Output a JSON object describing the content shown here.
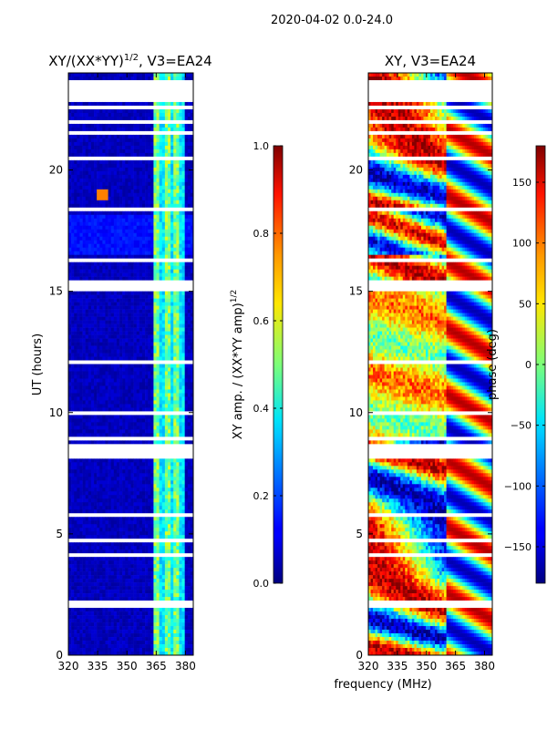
{
  "figure": {
    "suptitle": "2020-04-02 0.0-24.0",
    "xlabel": "frequency (MHz)",
    "ylabel": "UT (hours)"
  },
  "chart_data": [
    {
      "type": "heatmap",
      "title": "XY/(XX*YY)^1/2, V3=EA24",
      "title_main": "XY/(XX*YY)",
      "title_exp": "1/2",
      "title_tail": ", V3=EA24",
      "xlim": [
        320,
        384
      ],
      "ylim": [
        0,
        24
      ],
      "xticks": [
        320,
        335,
        350,
        365,
        380
      ],
      "yticks": [
        0,
        5,
        10,
        15,
        20
      ],
      "colorbar": {
        "label": "XY amp. / (XX*YY amp)^1/2",
        "label_main": "XY amp. / (XX*YY amp)",
        "label_exp": "1/2",
        "range": [
          0.0,
          1.0
        ],
        "ticks": [
          "0.0",
          "0.2",
          "0.4",
          "0.6",
          "0.8",
          "1.0"
        ]
      },
      "colormap": "jet",
      "description_values": {
        "background_level": 0.05,
        "bright_band_mhz": [
          364,
          380
        ],
        "bright_band_level": [
          0.3,
          0.6
        ],
        "blank_rows_hours": [
          [
            22.8,
            23.6
          ],
          [
            21.9,
            22.1
          ],
          [
            15.0,
            15.5
          ],
          [
            8.1,
            8.7
          ],
          [
            4.0,
            4.2
          ],
          [
            2.0,
            2.2
          ]
        ]
      }
    },
    {
      "type": "heatmap",
      "title": "XY, V3=EA24",
      "xlim": [
        320,
        384
      ],
      "ylim": [
        0,
        24
      ],
      "xticks": [
        320,
        335,
        350,
        365,
        380
      ],
      "yticks": [
        0,
        5,
        10,
        15,
        20
      ],
      "colorbar": {
        "label": "phase (deg)",
        "range": [
          -180,
          180
        ],
        "ticks": [
          "−150",
          "−100",
          "−50",
          "0",
          "50",
          "100",
          "150"
        ]
      },
      "colormap": "jet"
    }
  ]
}
